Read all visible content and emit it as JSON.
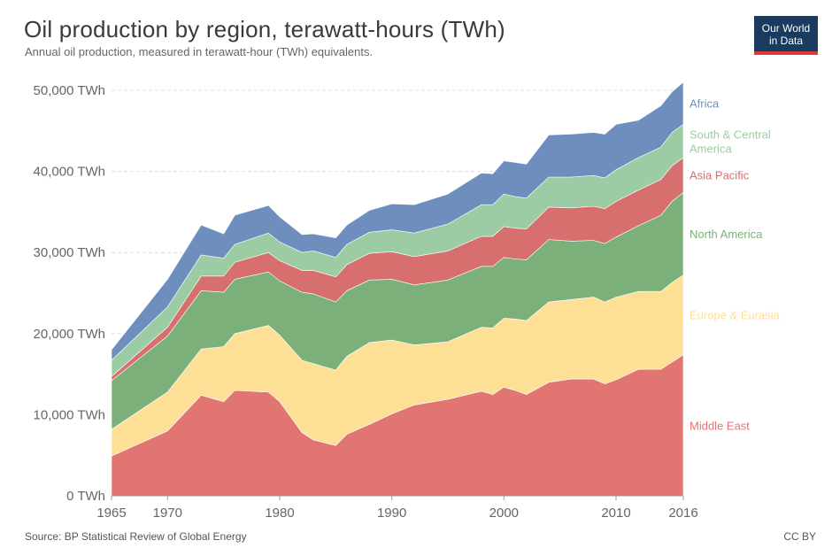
{
  "header": {
    "title": "Oil production by region, terawatt-hours (TWh)",
    "subtitle": "Annual oil production, measured in terawatt-hour (TWh) equivalents."
  },
  "logo": {
    "line1": "Our World",
    "line2": "in Data"
  },
  "footer": {
    "source": "Source: BP Statistical Review of Global Energy",
    "license": "CC BY"
  },
  "chart_data": {
    "type": "area",
    "stacked": true,
    "xlim": [
      1965,
      2016
    ],
    "ylim": [
      0,
      50000
    ],
    "x_ticks": [
      1965,
      1970,
      1980,
      1990,
      2000,
      2010,
      2016
    ],
    "y_ticks": [
      {
        "value": 0,
        "label": "0 TWh"
      },
      {
        "value": 10000,
        "label": "10,000 TWh"
      },
      {
        "value": 20000,
        "label": "20,000 TWh"
      },
      {
        "value": 30000,
        "label": "30,000 TWh"
      },
      {
        "value": 40000,
        "label": "40,000 TWh"
      },
      {
        "value": 50000,
        "label": "50,000 TWh"
      }
    ],
    "grid": "horizontal-dashed",
    "legend_placement": "right",
    "x": [
      1965,
      1970,
      1973,
      1975,
      1976,
      1979,
      1980,
      1982,
      1983,
      1985,
      1986,
      1988,
      1990,
      1992,
      1995,
      1998,
      1999,
      2000,
      2001,
      2002,
      2004,
      2006,
      2008,
      2009,
      2010,
      2012,
      2014,
      2015,
      2016
    ],
    "series": [
      {
        "name": "Middle East",
        "color": "#e07572",
        "values": [
          4900,
          8000,
          12400,
          11600,
          13000,
          12800,
          11600,
          7800,
          6900,
          6200,
          7600,
          8800,
          10100,
          11200,
          11900,
          12900,
          12500,
          13400,
          13000,
          12500,
          14000,
          14400,
          14400,
          13800,
          14300,
          15600,
          15600,
          16500,
          17400
        ]
      },
      {
        "name": "Europe & Eurasia",
        "color": "#fde096",
        "values": [
          3300,
          4800,
          5700,
          6800,
          7000,
          8200,
          8200,
          8900,
          9400,
          9300,
          9600,
          10100,
          9100,
          7400,
          7100,
          7900,
          8200,
          8500,
          8800,
          9100,
          9900,
          9800,
          10100,
          10100,
          10200,
          9600,
          9600,
          9800,
          9800
        ]
      },
      {
        "name": "North America",
        "color": "#7bb07a",
        "values": [
          6000,
          6900,
          7200,
          6700,
          6700,
          6600,
          6700,
          8400,
          8600,
          8400,
          8100,
          7700,
          7500,
          7400,
          7600,
          7500,
          7600,
          7500,
          7400,
          7500,
          7700,
          7200,
          7000,
          7200,
          7400,
          8100,
          9400,
          10000,
          10200
        ]
      },
      {
        "name": "Asia Pacific",
        "color": "#d76f6e",
        "values": [
          500,
          1100,
          1800,
          2000,
          2100,
          2400,
          2500,
          2700,
          2900,
          3100,
          3200,
          3300,
          3400,
          3500,
          3600,
          3700,
          3700,
          3800,
          3800,
          3800,
          4000,
          4100,
          4200,
          4300,
          4400,
          4400,
          4400,
          4400,
          4300
        ]
      },
      {
        "name": "South & Central America",
        "color": "#9ccca3",
        "values": [
          2000,
          2500,
          2600,
          2200,
          2200,
          2400,
          2300,
          2200,
          2400,
          2400,
          2500,
          2600,
          2700,
          2900,
          3300,
          3900,
          3900,
          4000,
          3900,
          3800,
          3700,
          3800,
          3800,
          3800,
          3900,
          4000,
          4000,
          4100,
          4100
        ]
      },
      {
        "name": "Africa",
        "color": "#6e8fbe",
        "values": [
          1300,
          3400,
          3700,
          3000,
          3600,
          3400,
          3100,
          2200,
          2100,
          2400,
          2400,
          2700,
          3200,
          3500,
          3700,
          3900,
          3800,
          4100,
          4200,
          4200,
          5200,
          5300,
          5300,
          5400,
          5600,
          4600,
          5100,
          5000,
          5200
        ]
      }
    ]
  }
}
